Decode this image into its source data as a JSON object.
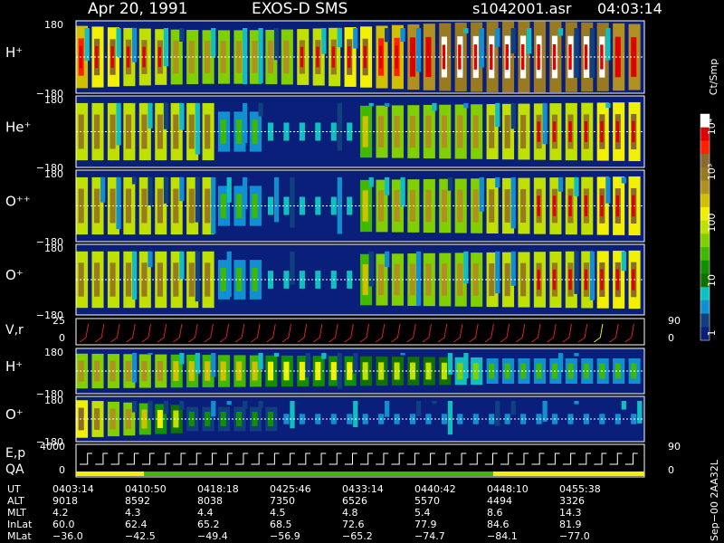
{
  "header": {
    "date": "Apr 20, 1991",
    "mission": "EXOS-D SMS",
    "file": "s1042001.asr",
    "time": "04:03:14"
  },
  "colorbar": {
    "unit": "Ct/Smp",
    "ticks": [
      "10⁴",
      "10³",
      "100",
      "10",
      "1"
    ],
    "colors": [
      "#ffffff",
      "#e00000",
      "#ff2000",
      "#8a6a30",
      "#9a7a20",
      "#b09020",
      "#d0c000",
      "#f0f000",
      "#c0e000",
      "#80d000",
      "#40b800",
      "#109000",
      "#107000",
      "#10c0c0",
      "#1090d0",
      "#104080",
      "#0a1f7a"
    ]
  },
  "chart_data": [
    {
      "type": "heatmap",
      "panel": "H+",
      "ylabel": "H⁺",
      "ylim": [
        -180,
        180
      ],
      "y_ticks": [
        "180",
        "−180"
      ],
      "x_range": [
        "0403:14",
        "0500:00"
      ],
      "pitch_angle_pattern": "vertical stripes, peak near 0°",
      "grid": false
    },
    {
      "type": "heatmap",
      "panel": "He+",
      "ylabel": "He⁺",
      "ylim": [
        -180,
        180
      ],
      "y_ticks": [
        "180",
        "−180"
      ],
      "grid": false
    },
    {
      "type": "heatmap",
      "panel": "O++",
      "ylabel": "O⁺⁺",
      "ylim": [
        -180,
        180
      ],
      "y_ticks": [
        "180",
        "−180"
      ],
      "grid": false
    },
    {
      "type": "heatmap",
      "panel": "O+",
      "ylabel": "O⁺",
      "ylim": [
        -180,
        180
      ],
      "y_ticks": [
        "180",
        "−180"
      ],
      "grid": false
    },
    {
      "type": "line",
      "panel": "V,r",
      "ylabel": "V,r",
      "y_ticks": [
        "25",
        "0"
      ],
      "right_ticks": [
        "90",
        "0"
      ]
    },
    {
      "type": "heatmap",
      "panel": "H+ low",
      "ylabel": "H⁺",
      "ylim": [
        -180,
        180
      ],
      "y_ticks": [
        "180",
        "−180"
      ]
    },
    {
      "type": "heatmap",
      "panel": "O+ low",
      "ylabel": "O⁺",
      "ylim": [
        -180,
        180
      ],
      "y_ticks": [
        "180",
        "−180"
      ]
    },
    {
      "type": "line",
      "panel": "E,p QA",
      "ylabel_1": "E,p",
      "ylabel_2": "QA",
      "y_ticks": [
        "4000",
        "0"
      ],
      "right_ticks": [
        "90",
        "0"
      ]
    }
  ],
  "footer": {
    "labels": [
      "UT",
      "ALT",
      "MLT",
      "InLat",
      "MLat"
    ],
    "columns": [
      [
        "0403:14",
        "9018",
        "4.2",
        "60.0",
        "−36.0"
      ],
      [
        "0410:50",
        "8592",
        "4.3",
        "62.4",
        "−42.5"
      ],
      [
        "0418:18",
        "8038",
        "4.4",
        "65.2",
        "−49.4"
      ],
      [
        "0425:46",
        "7350",
        "4.5",
        "68.5",
        "−56.9"
      ],
      [
        "0433:14",
        "6526",
        "4.8",
        "72.6",
        "−65.2"
      ],
      [
        "0440:42",
        "5570",
        "5.4",
        "77.9",
        "−74.7"
      ],
      [
        "0448:10",
        "4494",
        "8.6",
        "84.6",
        "−84.1"
      ],
      [
        "0455:38",
        "3326",
        "14.3",
        "81.9",
        "−77.0"
      ]
    ]
  },
  "side_text": "Sep−00  2AA32L"
}
